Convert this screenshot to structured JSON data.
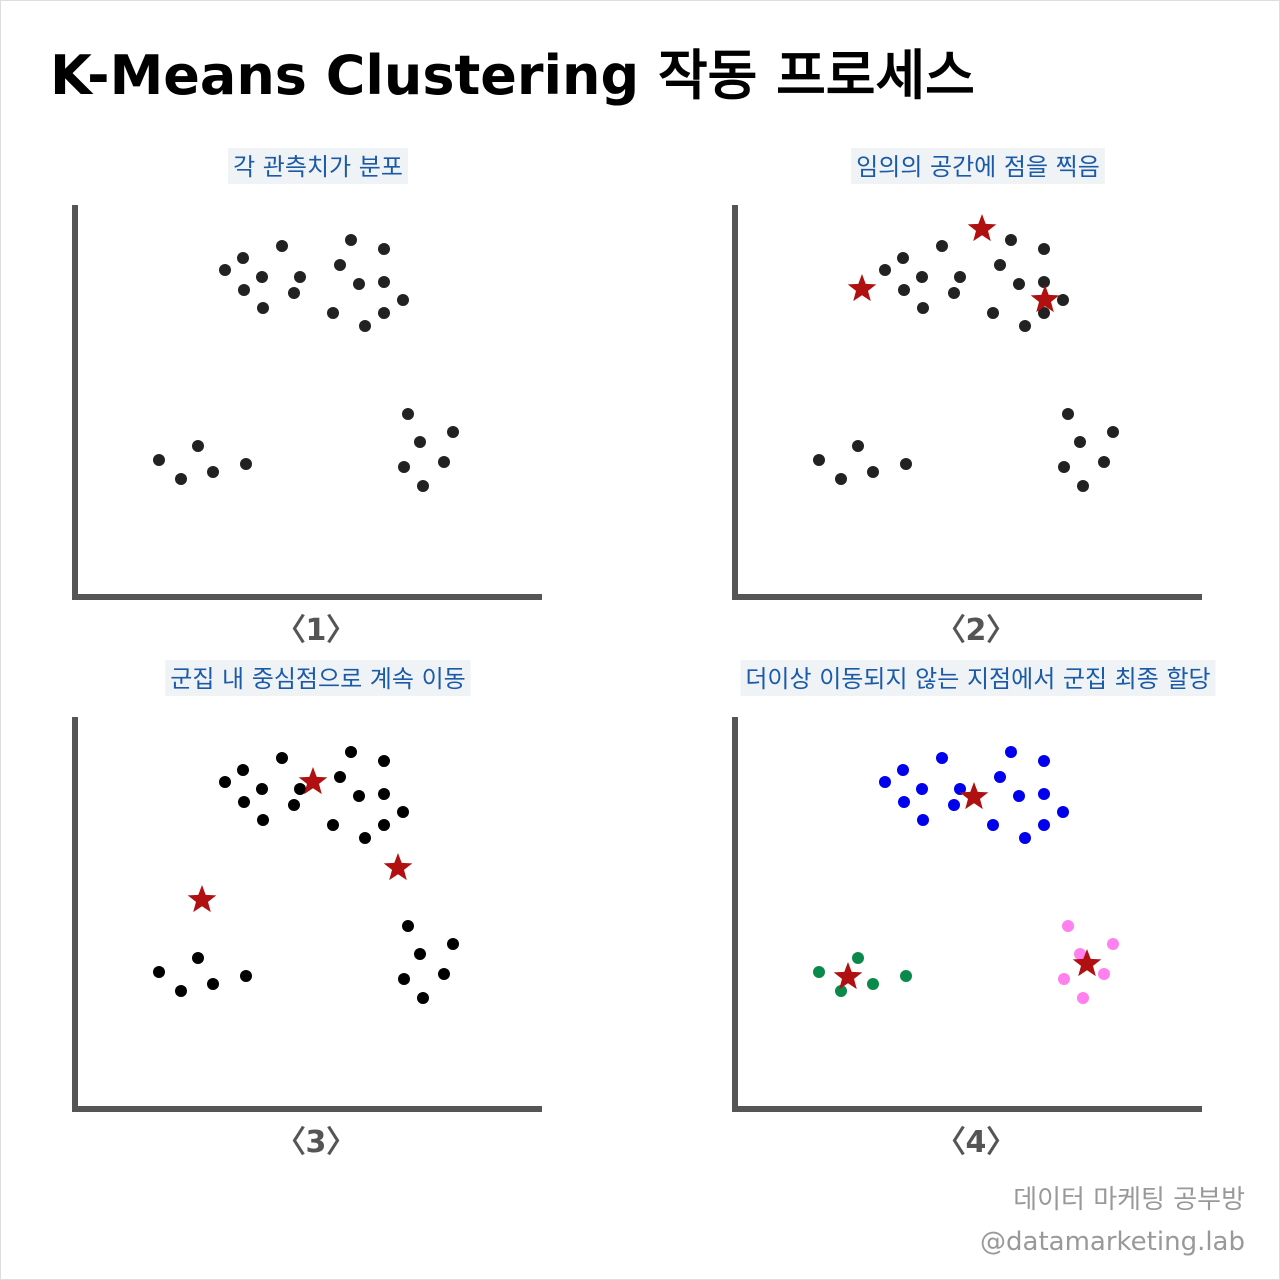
{
  "header": {
    "title": "K-Means Clustering 작동 프로세스"
  },
  "panels": [
    {
      "caption": "각 관측치가 분포",
      "label": "〈1〉"
    },
    {
      "caption": "임의의 공간에 점을 찍음",
      "label": "〈2〉"
    },
    {
      "caption": "군집 내 중심점으로 계속 이동",
      "label": "〈3〉"
    },
    {
      "caption": "더이상 이동되지 않는 지점에서 군집 최종 할당",
      "label": "〈4〉"
    }
  ],
  "footer": {
    "author": "데이터 마케팅 공부방",
    "handle": "@datamarketing.lab"
  }
}
